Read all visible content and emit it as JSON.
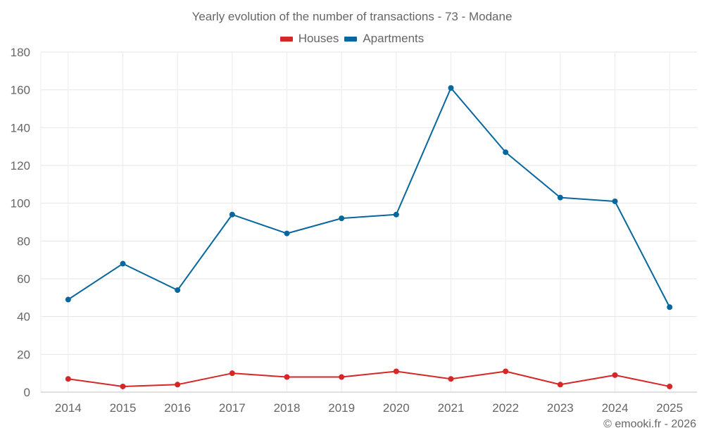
{
  "chart_data": {
    "type": "line",
    "title": "Yearly evolution of the number of transactions - 73 - Modane",
    "xlabel": "",
    "ylabel": "",
    "x": [
      "2014",
      "2015",
      "2016",
      "2017",
      "2018",
      "2019",
      "2020",
      "2021",
      "2022",
      "2023",
      "2024",
      "2025"
    ],
    "ylim": [
      0,
      180
    ],
    "yticks": [
      0,
      20,
      40,
      60,
      80,
      100,
      120,
      140,
      160,
      180
    ],
    "grid": true,
    "legend_position": "top-center",
    "series": [
      {
        "name": "Houses",
        "color": "#d62728",
        "values": [
          7,
          3,
          4,
          10,
          8,
          8,
          11,
          7,
          11,
          4,
          9,
          3
        ]
      },
      {
        "name": "Apartments",
        "color": "#06679e",
        "values": [
          49,
          68,
          54,
          94,
          84,
          92,
          94,
          161,
          127,
          103,
          101,
          45
        ]
      }
    ]
  },
  "credit": "© emooki.fr - 2026"
}
